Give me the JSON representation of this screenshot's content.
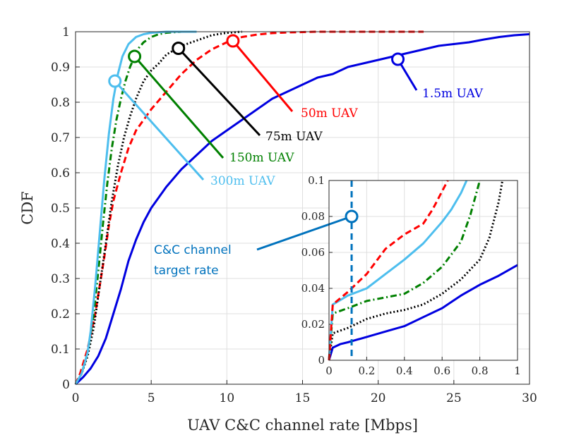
{
  "chart_data": {
    "type": "line",
    "title": "",
    "xlabel": "UAV C&C channel rate [Mbps]",
    "ylabel": "CDF",
    "xlim": [
      0,
      30
    ],
    "ylim": [
      0,
      1
    ],
    "grid": true,
    "x_ticks": [
      "0",
      "5",
      "10",
      "15",
      "20",
      "25",
      "30"
    ],
    "y_ticks": [
      "0",
      "0.1",
      "0.2",
      "0.3",
      "0.4",
      "0.5",
      "0.6",
      "0.7",
      "0.8",
      "0.9",
      "1"
    ],
    "series": [
      {
        "name": "1.5m UAV",
        "color": "#0000e0",
        "dash": "solid",
        "x": [
          0,
          0.5,
          1.0,
          1.5,
          2.0,
          2.5,
          3.0,
          3.5,
          4.0,
          4.5,
          5.0,
          5.5,
          6.0,
          7.0,
          8.0,
          9.0,
          10.0,
          11.0,
          12.0,
          13.0,
          14.0,
          15.0,
          16.0,
          17.0,
          18.0,
          19.0,
          20.0,
          21.0,
          22.0,
          23.0,
          24.0,
          25.0,
          26.0,
          27.0,
          28.0,
          29.0,
          30.0
        ],
        "y": [
          0,
          0.02,
          0.045,
          0.08,
          0.13,
          0.2,
          0.27,
          0.35,
          0.41,
          0.46,
          0.5,
          0.53,
          0.56,
          0.61,
          0.65,
          0.69,
          0.72,
          0.75,
          0.78,
          0.81,
          0.83,
          0.85,
          0.87,
          0.88,
          0.9,
          0.91,
          0.92,
          0.93,
          0.94,
          0.95,
          0.96,
          0.965,
          0.97,
          0.978,
          0.985,
          0.99,
          0.993
        ]
      },
      {
        "name": "50m UAV",
        "color": "#ff0000",
        "dash": "dashed",
        "x": [
          0,
          0.3,
          0.8,
          1.3,
          1.6,
          1.9,
          2.2,
          2.5,
          3.0,
          3.5,
          4.0,
          5.0,
          6.0,
          7.0,
          8.0,
          9.0,
          10.0,
          11.0,
          12.0,
          13.0,
          14.0,
          15.0,
          16.0,
          17.0,
          18.0,
          19.0,
          20.0,
          21.0,
          22.0,
          23.0
        ],
        "y": [
          0,
          0.03,
          0.1,
          0.2,
          0.28,
          0.36,
          0.45,
          0.52,
          0.6,
          0.67,
          0.72,
          0.78,
          0.83,
          0.88,
          0.92,
          0.95,
          0.97,
          0.985,
          0.992,
          0.996,
          0.998,
          0.999,
          1.0,
          1.0,
          1.0,
          1.0,
          1.0,
          1.0,
          1.0,
          1.0
        ]
      },
      {
        "name": "75m UAV",
        "color": "#000000",
        "dash": "dotted",
        "x": [
          0,
          0.4,
          0.8,
          1.2,
          1.6,
          2.0,
          2.4,
          2.8,
          3.2,
          3.6,
          4.0,
          4.5,
          5.0,
          5.5,
          6.0,
          7.0,
          8.0,
          9.0,
          10.0,
          11.0
        ],
        "y": [
          0,
          0.03,
          0.08,
          0.16,
          0.28,
          0.4,
          0.52,
          0.62,
          0.7,
          0.76,
          0.81,
          0.86,
          0.89,
          0.91,
          0.935,
          0.96,
          0.975,
          0.99,
          0.997,
          1.0
        ]
      },
      {
        "name": "150m UAV",
        "color": "#008000",
        "dash": "dashdot",
        "x": [
          0,
          0.4,
          0.8,
          1.2,
          1.5,
          1.8,
          2.1,
          2.4,
          2.7,
          3.0,
          3.3,
          3.6,
          3.9,
          4.2,
          4.5,
          5.0,
          5.5,
          6.0,
          7.0,
          8.0
        ],
        "y": [
          0,
          0.03,
          0.09,
          0.2,
          0.32,
          0.45,
          0.57,
          0.67,
          0.75,
          0.81,
          0.86,
          0.9,
          0.93,
          0.955,
          0.97,
          0.985,
          0.993,
          0.997,
          1.0,
          1.0
        ]
      },
      {
        "name": "300m UAV",
        "color": "#4dbeee",
        "dash": "solid",
        "x": [
          0,
          0.4,
          0.8,
          1.0,
          1.3,
          1.6,
          1.9,
          2.2,
          2.5,
          2.8,
          3.1,
          3.5,
          4.0,
          4.5,
          5.0,
          6.0,
          7.0,
          8.0
        ],
        "y": [
          0,
          0.03,
          0.09,
          0.15,
          0.28,
          0.43,
          0.58,
          0.71,
          0.81,
          0.88,
          0.93,
          0.965,
          0.985,
          0.993,
          0.997,
          1.0,
          1.0,
          1.0
        ]
      }
    ],
    "annotations": [
      {
        "label": "50m UAV",
        "x": 10.4,
        "y": 0.974
      },
      {
        "label": "75m UAV",
        "x": 6.8,
        "y": 0.953
      },
      {
        "label": "150m UAV",
        "x": 3.9,
        "y": 0.93
      },
      {
        "label": "300m UAV",
        "x": 2.6,
        "y": 0.86
      },
      {
        "label": "1.5m UAV",
        "x": 21.3,
        "y": 0.922
      }
    ],
    "inset": {
      "xlim": [
        0,
        1
      ],
      "ylim": [
        0,
        0.1
      ],
      "x_ticks": [
        "0",
        "0.2",
        "0.4",
        "0.6",
        "0.8",
        "1"
      ],
      "y_ticks": [
        "0",
        "0.02",
        "0.04",
        "0.06",
        "0.08",
        "0.1"
      ],
      "target_rate_x": 0.12,
      "target_marker_y": 0.08,
      "annotation_lines": [
        "C&C channel",
        "target rate"
      ],
      "series": [
        {
          "name": "1.5m UAV",
          "x": [
            0,
            0.02,
            0.06,
            0.1,
            0.2,
            0.3,
            0.4,
            0.5,
            0.6,
            0.7,
            0.8,
            0.9,
            1.0
          ],
          "y": [
            0,
            0.007,
            0.009,
            0.01,
            0.013,
            0.016,
            0.019,
            0.024,
            0.029,
            0.036,
            0.042,
            0.047,
            0.053
          ]
        },
        {
          "name": "75m UAV",
          "x": [
            0,
            0.02,
            0.1,
            0.2,
            0.3,
            0.4,
            0.5,
            0.6,
            0.7,
            0.8,
            0.85,
            0.9,
            0.92
          ],
          "y": [
            0,
            0.015,
            0.018,
            0.023,
            0.026,
            0.028,
            0.031,
            0.037,
            0.045,
            0.056,
            0.068,
            0.088,
            0.1
          ]
        },
        {
          "name": "150m UAV",
          "x": [
            0,
            0.02,
            0.1,
            0.2,
            0.3,
            0.4,
            0.5,
            0.6,
            0.7,
            0.75,
            0.8
          ],
          "y": [
            0,
            0.026,
            0.029,
            0.033,
            0.035,
            0.037,
            0.043,
            0.052,
            0.066,
            0.081,
            0.1
          ]
        },
        {
          "name": "300m UAV",
          "x": [
            0,
            0.02,
            0.1,
            0.2,
            0.3,
            0.4,
            0.5,
            0.6,
            0.65,
            0.7,
            0.73
          ],
          "y": [
            0,
            0.031,
            0.036,
            0.04,
            0.048,
            0.056,
            0.065,
            0.077,
            0.084,
            0.093,
            0.1
          ]
        },
        {
          "name": "50m UAV",
          "x": [
            0,
            0.02,
            0.1,
            0.2,
            0.3,
            0.4,
            0.5,
            0.55,
            0.6,
            0.63
          ],
          "y": [
            0,
            0.031,
            0.038,
            0.048,
            0.062,
            0.07,
            0.076,
            0.084,
            0.094,
            0.1
          ]
        }
      ]
    }
  }
}
